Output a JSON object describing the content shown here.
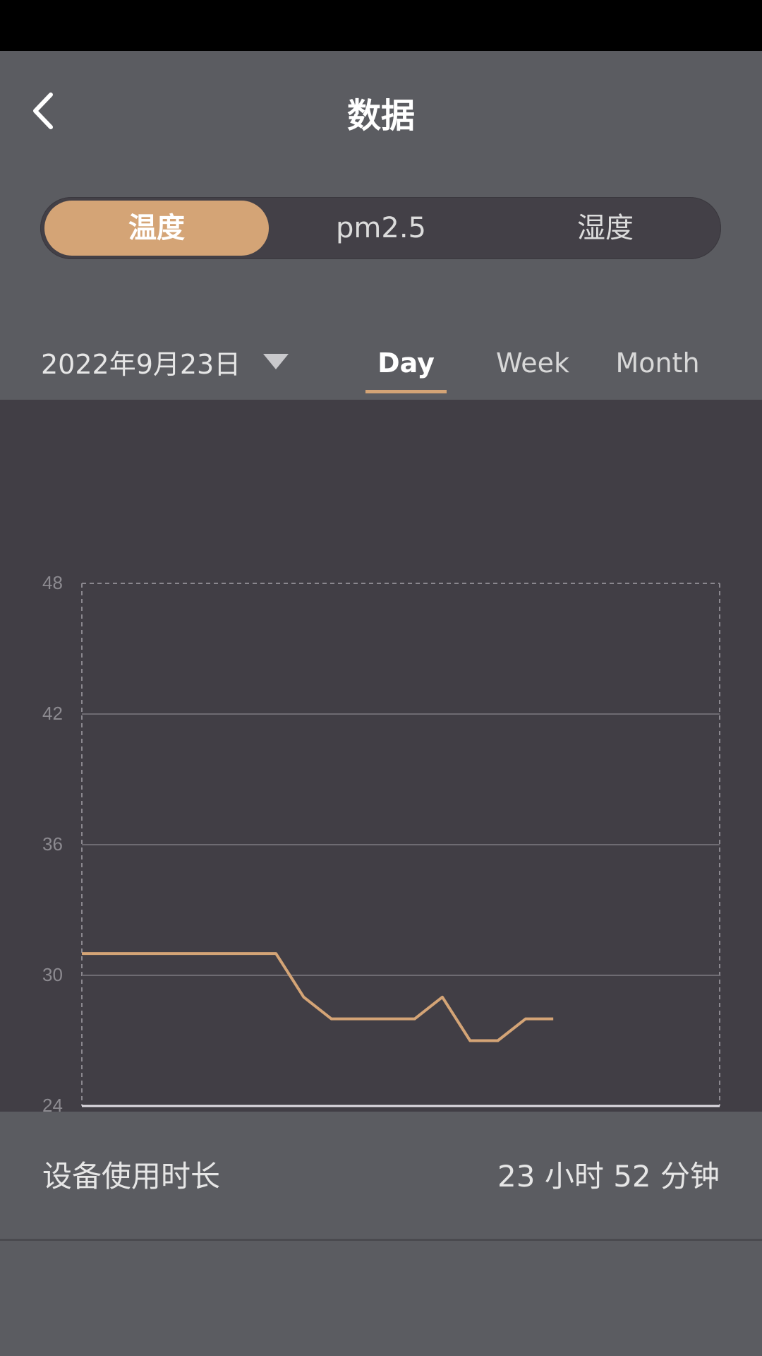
{
  "header": {
    "title": "数据",
    "back_icon": "chevron-left-icon"
  },
  "metric_tabs": [
    {
      "label": "温度",
      "active": true
    },
    {
      "label": "pm2.5",
      "active": false
    },
    {
      "label": "湿度",
      "active": false
    }
  ],
  "filters": {
    "date": "2022年9月23日",
    "dropdown_icon": "caret-down-icon",
    "periods": [
      {
        "label": "Day",
        "active": true
      },
      {
        "label": "Week",
        "active": false
      },
      {
        "label": "Month",
        "active": false
      }
    ]
  },
  "chart_data": {
    "type": "line",
    "ylim": [
      24,
      48
    ],
    "yticks": [
      "48",
      "42",
      "36",
      "30",
      "24"
    ],
    "xlim": [
      0,
      23
    ],
    "series": [
      {
        "color": "#d4a476",
        "points": [
          [
            0,
            31
          ],
          [
            1,
            31
          ],
          [
            2,
            31
          ],
          [
            3,
            31
          ],
          [
            4,
            31
          ],
          [
            5,
            31
          ],
          [
            6,
            31
          ],
          [
            7,
            31
          ],
          [
            8,
            29
          ],
          [
            9,
            28
          ],
          [
            10,
            28
          ],
          [
            11,
            28
          ],
          [
            12,
            28
          ],
          [
            13,
            29
          ],
          [
            14,
            27
          ],
          [
            15,
            27
          ],
          [
            16,
            28
          ],
          [
            17,
            28
          ]
        ]
      }
    ],
    "grid": true
  },
  "usage": {
    "label": "设备使用时长",
    "value": "23 小时 52 分钟"
  },
  "colors": {
    "accent": "#d4a476",
    "background": "#5b5c61",
    "panel": "#413e45"
  }
}
